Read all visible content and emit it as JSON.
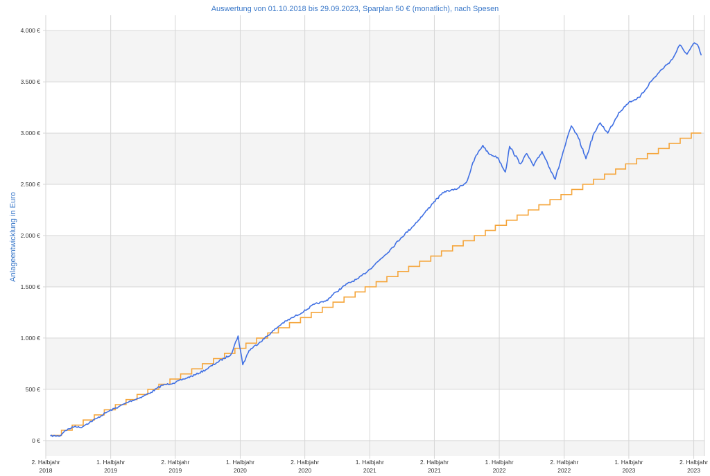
{
  "chart_data": {
    "type": "line",
    "title": "Auswertung von 01.10.2018 bis 29.09.2023, Sparplan 50 € (monatlich), nach Spesen",
    "ylabel": "Anlageentwicklung  in Euro",
    "xlabel": "",
    "ylim": [
      -150,
      4150
    ],
    "xlim": [
      "2018-09-18",
      "2023-10-08"
    ],
    "grid": true,
    "legend": "none",
    "colors": {
      "depot": "#3f6fe3",
      "invested": "#f5a53a",
      "band": "#f4f4f4",
      "grid": "#d6d6d6"
    },
    "y_ticks": [
      {
        "value": 0,
        "label": "0 €"
      },
      {
        "value": 500,
        "label": "500 €"
      },
      {
        "value": 1000,
        "label": "1.000 €"
      },
      {
        "value": 1500,
        "label": "1.500 €"
      },
      {
        "value": 2000,
        "label": "2.000 €"
      },
      {
        "value": 2500,
        "label": "2.500 €"
      },
      {
        "value": 3000,
        "label": "3.000 €"
      },
      {
        "value": 3500,
        "label": "3.500 €"
      },
      {
        "value": 4000,
        "label": "4.000 €"
      }
    ],
    "x_ticks": [
      {
        "date": "2018-09-18",
        "line1": "2. Halbjahr",
        "line2": "2018"
      },
      {
        "date": "2019-03-19",
        "line1": "1. Halbjahr",
        "line2": "2019"
      },
      {
        "date": "2019-09-16",
        "line1": "2. Halbjahr",
        "line2": "2019"
      },
      {
        "date": "2020-03-16",
        "line1": "1. Halbjahr",
        "line2": "2020"
      },
      {
        "date": "2020-09-13",
        "line1": "2. Halbjahr",
        "line2": "2020"
      },
      {
        "date": "2021-03-14",
        "line1": "1. Halbjahr",
        "line2": "2021"
      },
      {
        "date": "2021-09-11",
        "line1": "2. Halbjahr",
        "line2": "2021"
      },
      {
        "date": "2022-03-12",
        "line1": "1. Halbjahr",
        "line2": "2022"
      },
      {
        "date": "2022-09-10",
        "line1": "2. Halbjahr",
        "line2": "2022"
      },
      {
        "date": "2023-03-10",
        "line1": "1. Halbjahr",
        "line2": "2023"
      },
      {
        "date": "2023-09-08",
        "line1": "2. Halbjahr",
        "line2": "2023"
      }
    ],
    "series": [
      {
        "key": "depot",
        "x": [
          "2018-10-01",
          "2018-10-28",
          "2018-11-10",
          "2018-12-10",
          "2018-12-24",
          "2019-01-10",
          "2019-02-10",
          "2019-03-10",
          "2019-04-10",
          "2019-05-10",
          "2019-06-10",
          "2019-07-10",
          "2019-08-10",
          "2019-09-10",
          "2019-10-10",
          "2019-11-10",
          "2019-12-10",
          "2020-01-10",
          "2020-02-19",
          "2020-03-10",
          "2020-03-23",
          "2020-04-10",
          "2020-05-10",
          "2020-06-10",
          "2020-07-10",
          "2020-08-10",
          "2020-09-10",
          "2020-10-10",
          "2020-11-10",
          "2020-12-10",
          "2021-01-10",
          "2021-02-10",
          "2021-03-10",
          "2021-04-10",
          "2021-05-10",
          "2021-06-10",
          "2021-07-10",
          "2021-08-10",
          "2021-09-10",
          "2021-10-10",
          "2021-11-10",
          "2021-12-10",
          "2022-01-03",
          "2022-01-25",
          "2022-02-10",
          "2022-03-08",
          "2022-03-29",
          "2022-04-10",
          "2022-05-10",
          "2022-05-28",
          "2022-06-16",
          "2022-07-10",
          "2022-08-16",
          "2022-09-10",
          "2022-09-30",
          "2022-10-20",
          "2022-11-10",
          "2022-11-30",
          "2022-12-20",
          "2023-01-10",
          "2023-02-10",
          "2023-03-10",
          "2023-04-10",
          "2023-05-10",
          "2023-06-10",
          "2023-07-10",
          "2023-07-31",
          "2023-08-20",
          "2023-09-10",
          "2023-09-19",
          "2023-09-29"
        ],
        "values": [
          45,
          45,
          95,
          140,
          125,
          160,
          220,
          280,
          330,
          380,
          420,
          470,
          540,
          560,
          600,
          640,
          690,
          760,
          840,
          1020,
          740,
          880,
          960,
          1050,
          1140,
          1200,
          1260,
          1330,
          1360,
          1450,
          1530,
          1580,
          1660,
          1760,
          1860,
          1980,
          2080,
          2200,
          2330,
          2430,
          2450,
          2520,
          2760,
          2880,
          2800,
          2760,
          2620,
          2870,
          2700,
          2800,
          2680,
          2820,
          2550,
          2850,
          3070,
          2950,
          2750,
          2980,
          3100,
          3000,
          3200,
          3300,
          3350,
          3500,
          3620,
          3720,
          3860,
          3770,
          3880,
          3860,
          3760
        ]
      },
      {
        "key": "invested",
        "step_amount": 50,
        "start": "2018-10-01",
        "end": "2023-09-29",
        "values": [
          50,
          100,
          150,
          200,
          250,
          300,
          350,
          400,
          450,
          500,
          550,
          600,
          650,
          700,
          750,
          800,
          850,
          900,
          950,
          1000,
          1050,
          1100,
          1150,
          1200,
          1250,
          1300,
          1350,
          1400,
          1450,
          1500,
          1550,
          1600,
          1650,
          1700,
          1750,
          1800,
          1850,
          1900,
          1950,
          2000,
          2050,
          2100,
          2150,
          2200,
          2250,
          2300,
          2350,
          2400,
          2450,
          2500,
          2550,
          2600,
          2650,
          2700,
          2750,
          2800,
          2850,
          2900,
          2950,
          3000
        ]
      }
    ]
  }
}
